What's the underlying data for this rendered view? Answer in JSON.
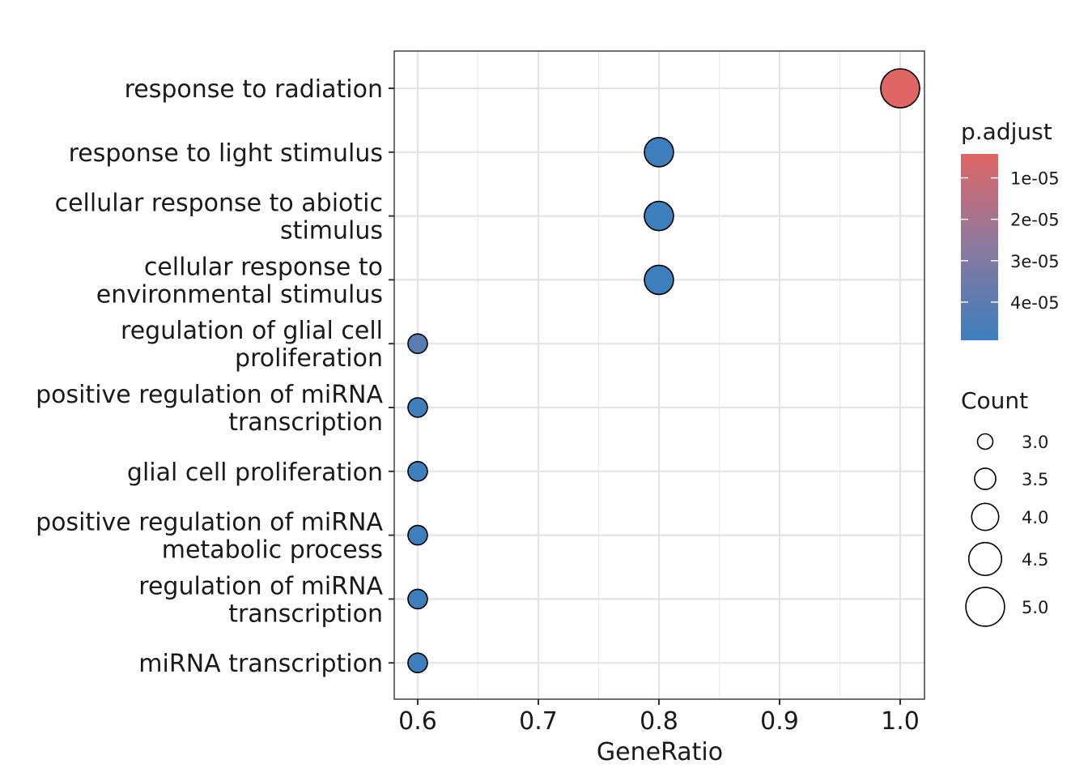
{
  "chart_data": {
    "type": "scatter",
    "subtype": "dot-plot",
    "xlabel": "GeneRatio",
    "ylabel": "",
    "xlim": [
      0.58,
      1.02
    ],
    "xticks": [
      0.6,
      0.7,
      0.8,
      0.9,
      1.0
    ],
    "xtick_labels": [
      "0.6",
      "0.7",
      "0.8",
      "0.9",
      "1.0"
    ],
    "grid": true,
    "categories": [
      "response to radiation",
      "response to light stimulus",
      "cellular response to abiotic stimulus",
      "cellular response to environmental stimulus",
      "regulation of glial cell proliferation",
      "positive regulation of miRNA transcription",
      "glial cell proliferation",
      "positive regulation of miRNA metabolic process",
      "regulation of miRNA transcription",
      "miRNA transcription"
    ],
    "category_lines": [
      [
        "response to radiation"
      ],
      [
        "response to light stimulus"
      ],
      [
        "cellular response to abiotic",
        "stimulus"
      ],
      [
        "cellular response to",
        "environmental stimulus"
      ],
      [
        "regulation of glial cell",
        "proliferation"
      ],
      [
        "positive regulation of miRNA",
        "transcription"
      ],
      [
        "glial cell proliferation"
      ],
      [
        "positive regulation of miRNA",
        "metabolic process"
      ],
      [
        "regulation of miRNA",
        "transcription"
      ],
      [
        "miRNA transcription"
      ]
    ],
    "points": [
      {
        "category": "response to radiation",
        "gene_ratio": 1.0,
        "count": 5,
        "p_adjust": 5e-06
      },
      {
        "category": "response to light stimulus",
        "gene_ratio": 0.8,
        "count": 4,
        "p_adjust": 5e-05
      },
      {
        "category": "cellular response to abiotic stimulus",
        "gene_ratio": 0.8,
        "count": 4,
        "p_adjust": 5e-05
      },
      {
        "category": "cellular response to environmental stimulus",
        "gene_ratio": 0.8,
        "count": 4,
        "p_adjust": 5e-05
      },
      {
        "category": "regulation of glial cell proliferation",
        "gene_ratio": 0.6,
        "count": 3,
        "p_adjust": 4.2e-05
      },
      {
        "category": "positive regulation of miRNA transcription",
        "gene_ratio": 0.6,
        "count": 3,
        "p_adjust": 5e-05
      },
      {
        "category": "glial cell proliferation",
        "gene_ratio": 0.6,
        "count": 3,
        "p_adjust": 5e-05
      },
      {
        "category": "positive regulation of miRNA metabolic process",
        "gene_ratio": 0.6,
        "count": 3,
        "p_adjust": 5e-05
      },
      {
        "category": "regulation of miRNA transcription",
        "gene_ratio": 0.6,
        "count": 3,
        "p_adjust": 5e-05
      },
      {
        "category": "miRNA transcription",
        "gene_ratio": 0.6,
        "count": 3,
        "p_adjust": 5e-05
      }
    ],
    "color_legend": {
      "title": "p.adjust",
      "range": [
        5e-06,
        5e-05
      ],
      "low_color": "#E06666",
      "high_color": "#3D7EBD",
      "ticks": [
        1e-05,
        2e-05,
        3e-05,
        4e-05
      ],
      "tick_labels": [
        "1e-05",
        "2e-05",
        "3e-05",
        "4e-05"
      ]
    },
    "size_legend": {
      "title": "Count",
      "values": [
        3.0,
        3.5,
        4.0,
        4.5,
        5.0
      ],
      "labels": [
        "3.0",
        "3.5",
        "4.0",
        "4.5",
        "5.0"
      ],
      "range": [
        3,
        5
      ]
    },
    "legend_position": "right"
  }
}
